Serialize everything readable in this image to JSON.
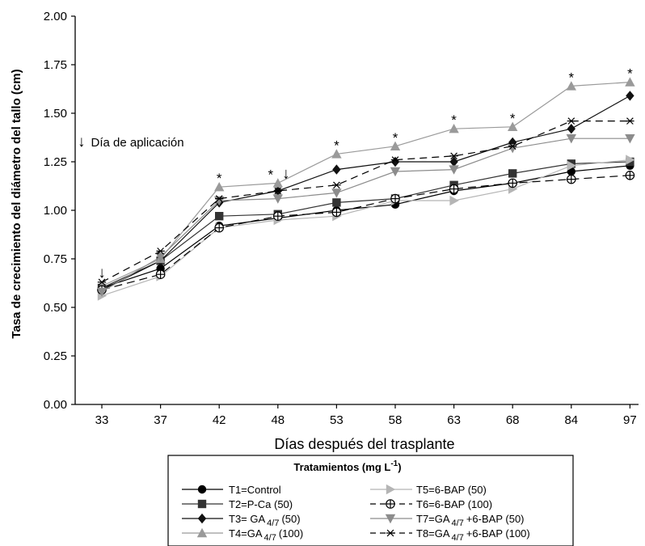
{
  "chart_data": {
    "type": "line",
    "title": "",
    "xlabel": "Días después del trasplante",
    "ylabel": "Tasa de crecimiento del diámetro del tallo (cm)",
    "ylim": [
      0,
      2.0
    ],
    "yticks": [
      "0.00",
      "0.25",
      "0.50",
      "0.75",
      "1.00",
      "1.25",
      "1.50",
      "1.75",
      "2.00"
    ],
    "categories": [
      "33",
      "37",
      "42",
      "48",
      "53",
      "58",
      "63",
      "68",
      "84",
      "97"
    ],
    "grid": false,
    "legend_placement": "bottom",
    "legend_title": "Tratamientos (mg L",
    "legend_title_sup": "-1",
    "annotation_text": "Día de aplicación",
    "arrow_glyph": "↓",
    "star_glyph": "*",
    "application_days": [
      "33",
      "48"
    ],
    "significant_days": [
      "42",
      "48",
      "53",
      "58",
      "63",
      "68",
      "84",
      "97"
    ],
    "series": [
      {
        "name": "T1=Control",
        "label_main": "T1=Control",
        "label_sub": "",
        "label_tail": "",
        "color": "#000000",
        "marker": "circle",
        "dash": "",
        "values": [
          0.6,
          0.7,
          0.92,
          0.96,
          1.0,
          1.03,
          1.1,
          1.14,
          1.2,
          1.23
        ]
      },
      {
        "name": "T2=P-Ca (50)",
        "label_main": "T2=P-Ca (50)",
        "label_sub": "",
        "label_tail": "",
        "color": "#333333",
        "marker": "square",
        "dash": "",
        "values": [
          0.6,
          0.74,
          0.97,
          0.98,
          1.04,
          1.06,
          1.13,
          1.19,
          1.24,
          1.25
        ]
      },
      {
        "name": "T3= GA 4/7 (50)",
        "label_main": "T3= GA",
        "label_sub": "4/7",
        "label_tail": "(50)",
        "color": "#111111",
        "marker": "diamond",
        "dash": "",
        "values": [
          0.59,
          0.74,
          1.04,
          1.1,
          1.21,
          1.25,
          1.25,
          1.35,
          1.42,
          1.59
        ]
      },
      {
        "name": "T4=GA 4/7 (100)",
        "label_main": "T4=GA",
        "label_sub": "4/7",
        "label_tail": "(100)",
        "color": "#9a9a9a",
        "marker": "triangle-up",
        "dash": "",
        "values": [
          0.61,
          0.75,
          1.12,
          1.14,
          1.29,
          1.33,
          1.42,
          1.43,
          1.64,
          1.66
        ]
      },
      {
        "name": "T5=6-BAP (50)",
        "label_main": "T5=6-BAP (50)",
        "label_sub": "",
        "label_tail": "",
        "color": "#b5b5b5",
        "marker": "triangle-right",
        "dash": "",
        "values": [
          0.56,
          0.66,
          0.91,
          0.95,
          0.97,
          1.05,
          1.05,
          1.11,
          1.23,
          1.26
        ]
      },
      {
        "name": "T6=6-BAP (100)",
        "label_main": "T6=6-BAP (100)",
        "label_sub": "",
        "label_tail": "",
        "color": "#000000",
        "marker": "crossed-circle",
        "dash": "10,6",
        "values": [
          0.59,
          0.67,
          0.91,
          0.97,
          0.99,
          1.06,
          1.11,
          1.14,
          1.16,
          1.18
        ]
      },
      {
        "name": "T7=GA 4/7 +6-BAP (50)",
        "label_main": "T7=GA",
        "label_sub": "4/7",
        "label_tail": "+6-BAP (50)",
        "color": "#8c8c8c",
        "marker": "triangle-down",
        "dash": "",
        "values": [
          0.58,
          0.76,
          1.05,
          1.06,
          1.09,
          1.2,
          1.21,
          1.32,
          1.37,
          1.37
        ]
      },
      {
        "name": "T8=GA 4/7 +6-BAP (100)",
        "label_main": "T8=GA",
        "label_sub": "4/7",
        "label_tail": "+6-BAP (100)",
        "color": "#000000",
        "marker": "asterisk",
        "dash": "9,6",
        "values": [
          0.63,
          0.79,
          1.06,
          1.1,
          1.13,
          1.26,
          1.28,
          1.33,
          1.46,
          1.46
        ]
      }
    ]
  }
}
